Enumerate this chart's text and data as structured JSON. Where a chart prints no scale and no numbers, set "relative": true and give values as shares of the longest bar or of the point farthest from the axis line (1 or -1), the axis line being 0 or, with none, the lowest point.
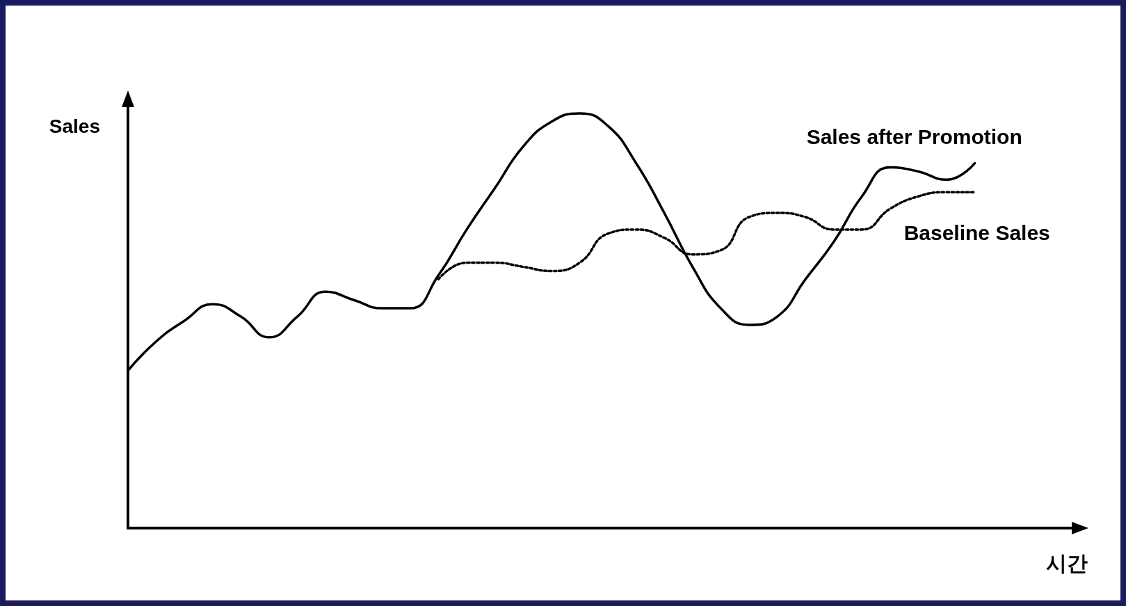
{
  "chart_data": {
    "type": "line",
    "relative": true,
    "xlabel": "시간",
    "ylabel": "Sales",
    "categories": [
      null,
      null,
      null,
      null,
      null,
      null,
      null,
      null,
      null,
      null,
      null,
      null,
      null,
      null,
      null,
      null,
      null,
      null,
      null,
      null,
      null,
      null,
      null,
      null,
      null,
      null,
      null,
      null,
      null,
      null,
      null
    ],
    "series": [
      {
        "name": "Sales after Promotion",
        "color": "#000000",
        "line_style": "solid",
        "values": [
          0.38,
          0.45,
          0.5,
          0.54,
          0.51,
          0.46,
          0.51,
          0.57,
          0.55,
          0.53,
          0.53,
          0.61,
          0.72,
          0.82,
          0.92,
          0.98,
          1,
          0.97,
          0.88,
          0.76,
          0.63,
          0.53,
          0.49,
          0.51,
          0.6,
          0.69,
          0.8,
          0.87,
          0.86,
          0.84,
          0.88
        ]
      },
      {
        "name": "Baseline Sales",
        "color": "#000000",
        "line_style": "dotted",
        "values": [
          null,
          null,
          null,
          null,
          null,
          null,
          null,
          null,
          null,
          null,
          null,
          0.6,
          0.64,
          0.64,
          0.63,
          0.62,
          0.64,
          0.71,
          0.72,
          0.7,
          0.66,
          0.67,
          0.75,
          0.76,
          0.75,
          0.72,
          0.72,
          0.77,
          0.8,
          0.81,
          0.81
        ]
      }
    ],
    "grid": false,
    "legend": false,
    "marker": "none"
  }
}
